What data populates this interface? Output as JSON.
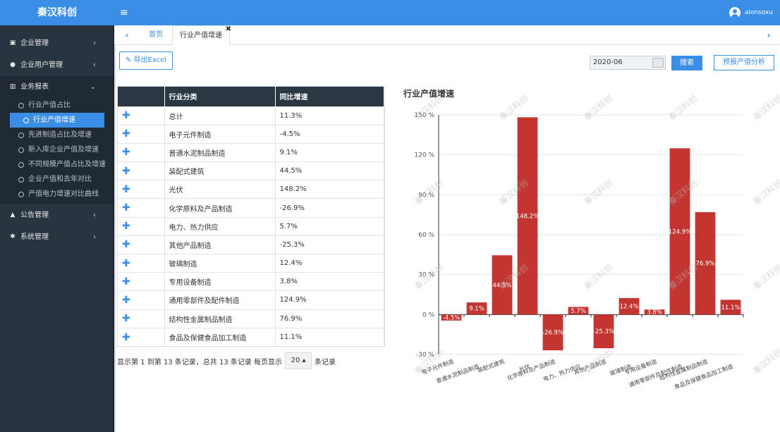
{
  "app": {
    "brand": "秦汉科创",
    "user": "alonsoxu"
  },
  "sidebar": {
    "items": [
      {
        "label": "企业管理",
        "icon": "id-card-icon"
      },
      {
        "label": "企业用户管理",
        "icon": "users-icon"
      },
      {
        "label": "业务报表",
        "icon": "bar-chart-icon"
      },
      {
        "label": "公告管理",
        "icon": "bank-icon"
      },
      {
        "label": "系统管理",
        "icon": "gear-icon"
      }
    ],
    "submenu": [
      "行业产值占比",
      "行业产值增速",
      "先进制造占比及增速",
      "新入库企业产值及增速",
      "不同规模产值占比及增速",
      "企业产值和去年对比",
      "产值电力增速对比曲线"
    ]
  },
  "tabs": {
    "home": "首页",
    "current": "行业产值增速"
  },
  "toolbar": {
    "export_label": "导出Excel",
    "date_value": "2020-06",
    "search_label": "搜索",
    "forecast_label": "预报产值分析"
  },
  "table": {
    "headers": [
      "行业分类",
      "同比增速"
    ],
    "rows": [
      [
        "总计",
        "11.3%"
      ],
      [
        "电子元件制造",
        "-4.5%"
      ],
      [
        "普通水泥制品制造",
        "9.1%"
      ],
      [
        "装配式建筑",
        "44.5%"
      ],
      [
        "光伏",
        "148.2%"
      ],
      [
        "化学原料及产品制造",
        "-26.9%"
      ],
      [
        "电力、热力供应",
        "5.7%"
      ],
      [
        "其他产品制造",
        "-25.3%"
      ],
      [
        "玻璃制造",
        "12.4%"
      ],
      [
        "专用设备制造",
        "3.8%"
      ],
      [
        "通用零部件及配件制造",
        "124.9%"
      ],
      [
        "结构性金属制品制造",
        "76.9%"
      ],
      [
        "食品及保健食品加工制造",
        "11.1%"
      ]
    ]
  },
  "pager": {
    "text_before": "显示第 1 到第 13 条记录，总共 13 条记录 每页显示",
    "page_size": "20",
    "text_after": "条记录"
  },
  "watermark": "秦汉科创",
  "chart_data": {
    "type": "bar",
    "title": "行业产值增速",
    "categories": [
      "电子元件制造",
      "普通水泥制品制造",
      "装配式建筑",
      "光伏",
      "化学原料及产品制造",
      "电力、热力供应",
      "其他产品制造",
      "玻璃制造",
      "专用设备制造",
      "通用零部件及配件制造",
      "结构性金属制品制造",
      "食品及保健食品加工制造"
    ],
    "values": [
      -4.5,
      9.1,
      44.5,
      148.2,
      -26.9,
      5.7,
      -25.3,
      12.4,
      3.8,
      124.9,
      76.9,
      11.1
    ],
    "data_labels": [
      "-4.5%",
      "9.1%",
      "44.5%",
      "148.2%",
      "-26.9%",
      "5.7%",
      "-25.3%",
      "12.4%",
      "3.8%",
      "124.9%",
      "76.9%",
      "11.1%"
    ],
    "yticks": [
      "-30 %",
      "0 %",
      "30 %",
      "60 %",
      "90 %",
      "120 %",
      "150 %"
    ],
    "ylim": [
      -30,
      150
    ],
    "bar_color": "#c23531",
    "grid": true
  }
}
